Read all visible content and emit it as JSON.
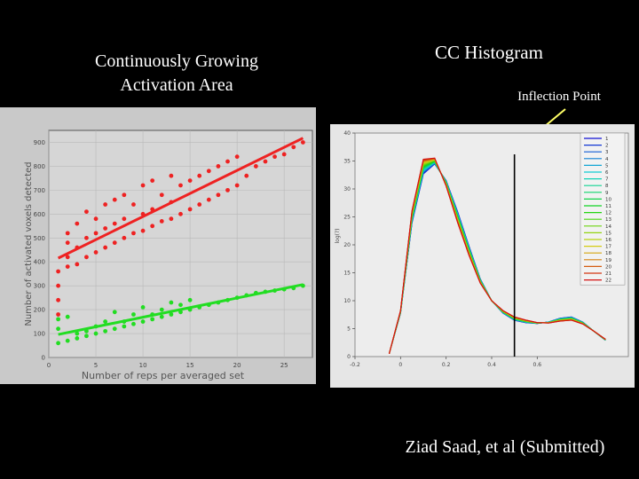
{
  "slide": {
    "left_title_line1": "Continuously Growing",
    "left_title_line2": "Activation Area",
    "right_title": "CC Histogram",
    "inflection_label": "Inflection Point",
    "citation": "Ziad Saad, et al (Submitted)",
    "colors": {
      "background": "#000000",
      "arrow": "#ffff66"
    }
  },
  "chart_data": [
    {
      "type": "scatter",
      "title": "",
      "xlabel": "Number of reps per averaged set",
      "ylabel": "Number of activated voxels detected",
      "xlim": [
        0,
        28
      ],
      "ylim": [
        0,
        950
      ],
      "xticks": [
        0,
        5,
        10,
        15,
        20,
        25
      ],
      "yticks": [
        0,
        100,
        200,
        300,
        400,
        500,
        600,
        700,
        800,
        900
      ],
      "grid": true,
      "series": [
        {
          "color": "#ee2222",
          "x": [
            1,
            1,
            1,
            1,
            2,
            2,
            2,
            2,
            3,
            3,
            3,
            4,
            4,
            4,
            5,
            5,
            5,
            6,
            6,
            6,
            7,
            7,
            7,
            8,
            8,
            8,
            9,
            9,
            10,
            10,
            10,
            11,
            11,
            11,
            12,
            12,
            13,
            13,
            13,
            14,
            14,
            15,
            15,
            16,
            16,
            17,
            17,
            18,
            18,
            19,
            19,
            20,
            20,
            21,
            22,
            23,
            24,
            25,
            26,
            27
          ],
          "y": [
            180,
            240,
            300,
            360,
            380,
            420,
            480,
            520,
            390,
            460,
            560,
            420,
            500,
            610,
            440,
            520,
            580,
            460,
            540,
            640,
            480,
            560,
            660,
            500,
            580,
            680,
            520,
            640,
            530,
            600,
            720,
            550,
            620,
            740,
            570,
            680,
            580,
            650,
            760,
            600,
            720,
            620,
            740,
            640,
            760,
            660,
            780,
            680,
            800,
            700,
            820,
            720,
            840,
            760,
            800,
            820,
            840,
            850,
            880,
            900
          ]
        },
        {
          "color": "#22dd22",
          "x": [
            1,
            1,
            1,
            2,
            2,
            3,
            3,
            4,
            4,
            5,
            5,
            6,
            6,
            7,
            7,
            8,
            8,
            9,
            9,
            10,
            10,
            11,
            11,
            12,
            12,
            13,
            13,
            14,
            14,
            15,
            15,
            16,
            17,
            18,
            19,
            20,
            21,
            22,
            23,
            24,
            25,
            26,
            27
          ],
          "y": [
            60,
            120,
            160,
            70,
            170,
            80,
            100,
            90,
            110,
            100,
            130,
            110,
            150,
            120,
            190,
            130,
            150,
            140,
            180,
            150,
            210,
            160,
            180,
            170,
            200,
            180,
            230,
            190,
            220,
            200,
            240,
            210,
            220,
            230,
            240,
            250,
            260,
            270,
            275,
            280,
            285,
            290,
            300
          ]
        }
      ]
    },
    {
      "type": "line",
      "title": "",
      "xlabel": "",
      "ylabel": "log(?)",
      "xlim": [
        -0.2,
        1.0
      ],
      "ylim": [
        0,
        40
      ],
      "xticks": [
        -0.2,
        0,
        0.2,
        0.4,
        0.6
      ],
      "yticks": [
        0,
        5,
        10,
        15,
        20,
        25,
        30,
        35,
        40
      ],
      "legend": {
        "position": "top-right",
        "entries": [
          "1",
          "2",
          "3",
          "4",
          "5",
          "6",
          "7",
          "8",
          "9",
          "10",
          "11",
          "12",
          "13",
          "14",
          "15",
          "16",
          "17",
          "18",
          "19",
          "20",
          "21",
          "22"
        ]
      },
      "x": [
        -0.05,
        0.0,
        0.05,
        0.1,
        0.15,
        0.2,
        0.25,
        0.3,
        0.35,
        0.4,
        0.45,
        0.5,
        0.55,
        0.6,
        0.65,
        0.7,
        0.75,
        0.8,
        0.85,
        0.9
      ],
      "y": [
        0.5,
        8,
        25,
        34,
        35,
        31,
        25,
        19,
        13.5,
        10,
        8,
        6.8,
        6.3,
        6.0,
        6.1,
        6.6,
        6.8,
        6.0,
        4.5,
        3
      ],
      "inflection_x": 0.5
    }
  ]
}
